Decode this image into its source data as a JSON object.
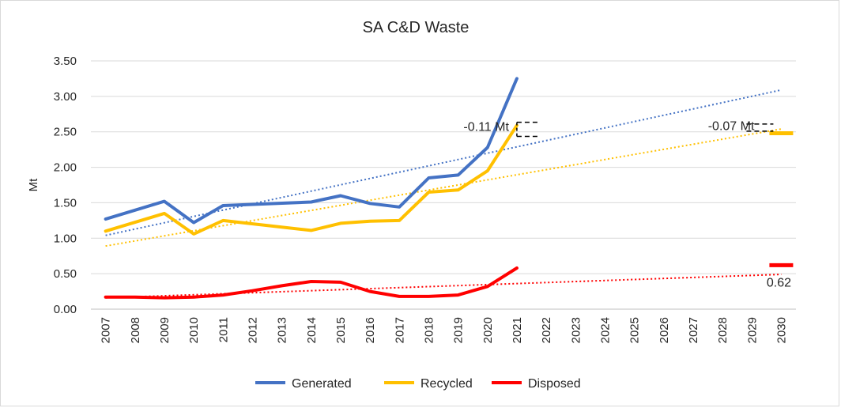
{
  "chart_data": {
    "type": "line",
    "title": "SA C&D Waste",
    "xlabel": "",
    "ylabel": "Mt",
    "ylim": [
      0,
      3.5
    ],
    "y_ticks": [
      "0.00",
      "0.50",
      "1.00",
      "1.50",
      "2.00",
      "2.50",
      "3.00",
      "3.50"
    ],
    "categories": [
      "2007",
      "2008",
      "2009",
      "2010",
      "2011",
      "2012",
      "2013",
      "2014",
      "2015",
      "2016",
      "2017",
      "2018",
      "2019",
      "2020",
      "2021",
      "2022",
      "2023",
      "2024",
      "2025",
      "2026",
      "2027",
      "2028",
      "2029",
      "2030"
    ],
    "grid": "horizontal",
    "legend_position": "bottom",
    "series": [
      {
        "name": "Generated",
        "color": "#4472C4",
        "points": [
          [
            2007,
            1.27
          ],
          [
            2009,
            1.52
          ],
          [
            2010,
            1.22
          ],
          [
            2011,
            1.46
          ],
          [
            2014,
            1.51
          ],
          [
            2015,
            1.6
          ],
          [
            2016,
            1.49
          ],
          [
            2017,
            1.44
          ],
          [
            2018,
            1.85
          ],
          [
            2019,
            1.89
          ],
          [
            2020,
            2.28
          ],
          [
            2021,
            3.25
          ]
        ],
        "trend": [
          [
            2007,
            1.04
          ],
          [
            2030,
            3.09
          ]
        ]
      },
      {
        "name": "Recycled",
        "color": "#FFC000",
        "points": [
          [
            2007,
            1.1
          ],
          [
            2009,
            1.35
          ],
          [
            2010,
            1.06
          ],
          [
            2011,
            1.25
          ],
          [
            2014,
            1.11
          ],
          [
            2015,
            1.21
          ],
          [
            2016,
            1.24
          ],
          [
            2017,
            1.25
          ],
          [
            2018,
            1.65
          ],
          [
            2019,
            1.68
          ],
          [
            2020,
            1.95
          ],
          [
            2021,
            2.59
          ]
        ],
        "trend": [
          [
            2007,
            0.89
          ],
          [
            2030,
            2.54
          ]
        ],
        "target": [
          2030,
          2.48
        ]
      },
      {
        "name": "Disposed",
        "color": "#FF0000",
        "points": [
          [
            2007,
            0.17
          ],
          [
            2008,
            0.17
          ],
          [
            2009,
            0.16
          ],
          [
            2010,
            0.17
          ],
          [
            2011,
            0.2
          ],
          [
            2012,
            0.26
          ],
          [
            2013,
            0.33
          ],
          [
            2014,
            0.39
          ],
          [
            2015,
            0.38
          ],
          [
            2016,
            0.25
          ],
          [
            2017,
            0.18
          ],
          [
            2018,
            0.18
          ],
          [
            2019,
            0.2
          ],
          [
            2020,
            0.32
          ],
          [
            2021,
            0.58
          ]
        ],
        "trend": [
          [
            2007,
            0.16
          ],
          [
            2030,
            0.49
          ]
        ],
        "target": [
          2030,
          0.62
        ]
      }
    ],
    "annotations": [
      {
        "text": "-0.11 Mt",
        "anchor_year": 2021
      },
      {
        "text": "-0.07 Mt",
        "anchor_year": 2030
      },
      {
        "text": "0.62",
        "anchor_year": 2030
      }
    ]
  }
}
